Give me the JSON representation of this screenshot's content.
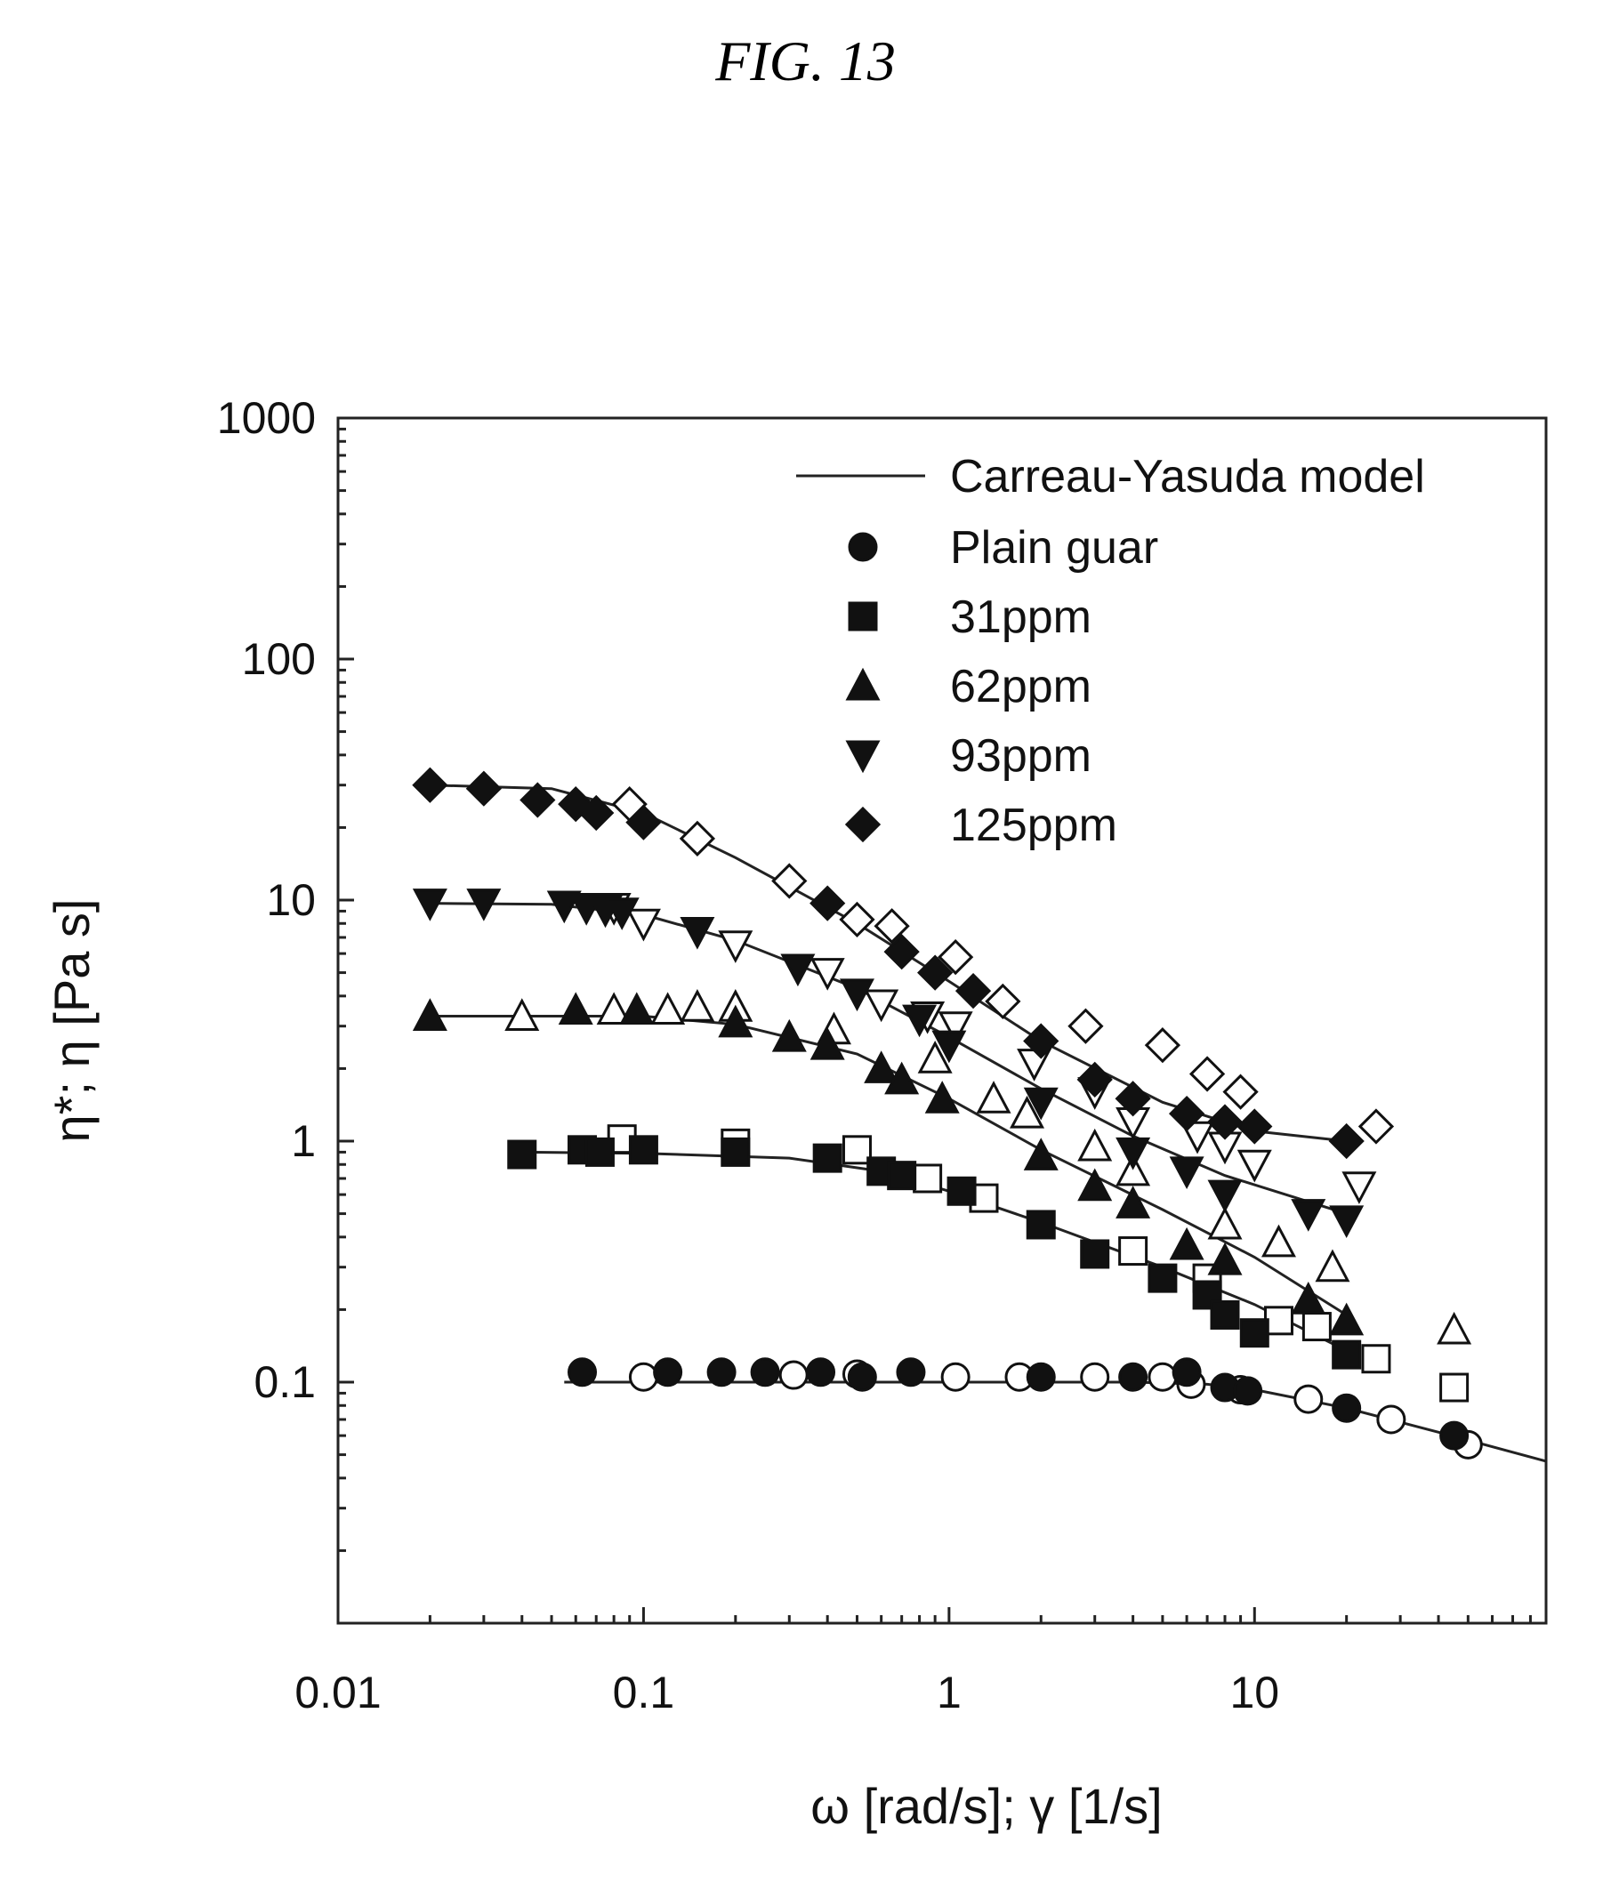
{
  "figure_label": "FIG. 13",
  "chart_data": {
    "type": "scatter",
    "title": "",
    "xlabel": "ω [rad/s]; γ [1/s]",
    "ylabel": "η*; η [Pa s]",
    "xscale": "log",
    "yscale": "log",
    "xlim": [
      0.01,
      90
    ],
    "ylim": [
      0.01,
      1000
    ],
    "x_ticks": [
      {
        "value": 0.01,
        "label": "0.01"
      },
      {
        "value": 0.1,
        "label": "0.1"
      },
      {
        "value": 1,
        "label": "1"
      },
      {
        "value": 10,
        "label": "10"
      }
    ],
    "y_ticks": [
      {
        "value": 1000,
        "label": "1000"
      },
      {
        "value": 100,
        "label": "100"
      },
      {
        "value": 10,
        "label": "10"
      },
      {
        "value": 1,
        "label": "1"
      },
      {
        "value": 0.1,
        "label": "0.1"
      }
    ],
    "grid": false,
    "legend_position": "top-right",
    "model_line_label": "Carreau-Yasuda model",
    "series": [
      {
        "name": "Plain guar",
        "marker": "circle",
        "filled": [
          [
            0.063,
            0.11
          ],
          [
            0.12,
            0.11
          ],
          [
            0.18,
            0.11
          ],
          [
            0.25,
            0.11
          ],
          [
            0.38,
            0.11
          ],
          [
            0.52,
            0.105
          ],
          [
            0.75,
            0.11
          ],
          [
            2,
            0.105
          ],
          [
            4,
            0.105
          ],
          [
            6,
            0.11
          ],
          [
            8,
            0.095
          ],
          [
            9.5,
            0.092
          ],
          [
            20,
            0.078
          ],
          [
            45,
            0.06
          ]
        ],
        "open": [
          [
            0.1,
            0.105
          ],
          [
            0.31,
            0.107
          ],
          [
            0.5,
            0.108
          ],
          [
            1.05,
            0.105
          ],
          [
            1.7,
            0.105
          ],
          [
            3,
            0.105
          ],
          [
            5,
            0.105
          ],
          [
            6.2,
            0.098
          ],
          [
            9,
            0.093
          ],
          [
            15,
            0.085
          ],
          [
            28,
            0.07
          ],
          [
            50,
            0.055
          ]
        ],
        "model": [
          [
            0.055,
            0.1
          ],
          [
            1,
            0.1
          ],
          [
            4,
            0.1
          ],
          [
            7,
            0.098
          ],
          [
            10,
            0.093
          ],
          [
            20,
            0.078
          ],
          [
            40,
            0.062
          ],
          [
            90,
            0.047
          ]
        ]
      },
      {
        "name": "31ppm",
        "marker": "square",
        "filled": [
          [
            0.04,
            0.88
          ],
          [
            0.063,
            0.92
          ],
          [
            0.072,
            0.9
          ],
          [
            0.1,
            0.92
          ],
          [
            0.2,
            0.9
          ],
          [
            0.4,
            0.85
          ],
          [
            0.6,
            0.75
          ],
          [
            0.7,
            0.72
          ],
          [
            1.1,
            0.62
          ],
          [
            2,
            0.45
          ],
          [
            3,
            0.34
          ],
          [
            5,
            0.27
          ],
          [
            7,
            0.23
          ],
          [
            8,
            0.19
          ],
          [
            10,
            0.16
          ],
          [
            20,
            0.13
          ]
        ],
        "open": [
          [
            0.085,
            1.02
          ],
          [
            0.2,
            0.98
          ],
          [
            0.5,
            0.92
          ],
          [
            0.85,
            0.7
          ],
          [
            1.3,
            0.58
          ],
          [
            4,
            0.35
          ],
          [
            7,
            0.27
          ],
          [
            12,
            0.18
          ],
          [
            16,
            0.17
          ],
          [
            25,
            0.125
          ],
          [
            45,
            0.095
          ]
        ],
        "model": [
          [
            0.04,
            0.9
          ],
          [
            0.1,
            0.89
          ],
          [
            0.3,
            0.85
          ],
          [
            0.6,
            0.75
          ],
          [
            1,
            0.62
          ],
          [
            2,
            0.46
          ],
          [
            5,
            0.3
          ],
          [
            10,
            0.21
          ],
          [
            20,
            0.135
          ]
        ]
      },
      {
        "name": "62ppm",
        "marker": "triangle-up",
        "filled": [
          [
            0.02,
            3.3
          ],
          [
            0.06,
            3.5
          ],
          [
            0.095,
            3.5
          ],
          [
            0.2,
            3.1
          ],
          [
            0.3,
            2.7
          ],
          [
            0.4,
            2.5
          ],
          [
            0.6,
            2.0
          ],
          [
            0.7,
            1.8
          ],
          [
            0.95,
            1.5
          ],
          [
            2,
            0.87
          ],
          [
            3,
            0.65
          ],
          [
            4,
            0.55
          ],
          [
            6,
            0.37
          ],
          [
            8,
            0.32
          ],
          [
            15,
            0.22
          ],
          [
            20,
            0.18
          ]
        ],
        "open": [
          [
            0.04,
            3.3
          ],
          [
            0.08,
            3.5
          ],
          [
            0.12,
            3.5
          ],
          [
            0.15,
            3.6
          ],
          [
            0.2,
            3.6
          ],
          [
            0.42,
            2.9
          ],
          [
            0.9,
            2.2
          ],
          [
            1.4,
            1.5
          ],
          [
            1.8,
            1.3
          ],
          [
            3,
            0.95
          ],
          [
            4,
            0.75
          ],
          [
            8,
            0.45
          ],
          [
            12,
            0.38
          ],
          [
            18,
            0.3
          ],
          [
            45,
            0.165
          ]
        ],
        "model": [
          [
            0.02,
            3.3
          ],
          [
            0.1,
            3.3
          ],
          [
            0.2,
            3.05
          ],
          [
            0.5,
            2.3
          ],
          [
            1,
            1.5
          ],
          [
            2,
            0.92
          ],
          [
            5,
            0.52
          ],
          [
            10,
            0.33
          ],
          [
            20,
            0.19
          ]
        ]
      },
      {
        "name": "93ppm",
        "marker": "triangle-down",
        "filled": [
          [
            0.02,
            9.7
          ],
          [
            0.03,
            9.7
          ],
          [
            0.055,
            9.5
          ],
          [
            0.065,
            9.3
          ],
          [
            0.075,
            9.1
          ],
          [
            0.085,
            8.9
          ],
          [
            0.15,
            7.4
          ],
          [
            0.32,
            5.2
          ],
          [
            0.5,
            4.1
          ],
          [
            0.8,
            3.2
          ],
          [
            1,
            2.5
          ],
          [
            2,
            1.45
          ],
          [
            4,
            0.9
          ],
          [
            6,
            0.75
          ],
          [
            8,
            0.6
          ],
          [
            15,
            0.5
          ],
          [
            20,
            0.47
          ]
        ],
        "open": [
          [
            0.08,
            9.3
          ],
          [
            0.1,
            8.0
          ],
          [
            0.2,
            6.5
          ],
          [
            0.4,
            5.0
          ],
          [
            0.6,
            3.7
          ],
          [
            0.85,
            3.3
          ],
          [
            1.05,
            3.0
          ],
          [
            1.9,
            2.1
          ],
          [
            3,
            1.6
          ],
          [
            4,
            1.2
          ],
          [
            6.5,
            1.05
          ],
          [
            8,
            0.95
          ],
          [
            10,
            0.8
          ],
          [
            22,
            0.65
          ]
        ],
        "model": [
          [
            0.02,
            9.7
          ],
          [
            0.05,
            9.6
          ],
          [
            0.1,
            8.7
          ],
          [
            0.2,
            6.8
          ],
          [
            0.5,
            4.3
          ],
          [
            1,
            2.7
          ],
          [
            2,
            1.65
          ],
          [
            4,
            1.05
          ],
          [
            8,
            0.72
          ],
          [
            20,
            0.5
          ]
        ]
      },
      {
        "name": "125ppm",
        "marker": "diamond",
        "filled": [
          [
            0.02,
            30
          ],
          [
            0.03,
            29
          ],
          [
            0.045,
            26
          ],
          [
            0.06,
            25
          ],
          [
            0.07,
            23
          ],
          [
            0.1,
            21
          ],
          [
            0.4,
            9.7
          ],
          [
            0.7,
            6.1
          ],
          [
            0.9,
            5.0
          ],
          [
            1.2,
            4.2
          ],
          [
            2,
            2.6
          ],
          [
            3,
            1.8
          ],
          [
            4,
            1.5
          ],
          [
            6,
            1.3
          ],
          [
            8,
            1.2
          ],
          [
            10,
            1.15
          ],
          [
            20,
            1.0
          ]
        ],
        "open": [
          [
            0.09,
            25
          ],
          [
            0.15,
            18
          ],
          [
            0.3,
            12
          ],
          [
            0.5,
            8.3
          ],
          [
            0.65,
            7.8
          ],
          [
            1.05,
            5.8
          ],
          [
            1.5,
            3.8
          ],
          [
            2.8,
            3.0
          ],
          [
            5,
            2.5
          ],
          [
            7,
            1.9
          ],
          [
            9,
            1.6
          ],
          [
            25,
            1.15
          ]
        ],
        "model": [
          [
            0.02,
            30
          ],
          [
            0.05,
            29
          ],
          [
            0.1,
            23
          ],
          [
            0.2,
            15
          ],
          [
            0.5,
            8.0
          ],
          [
            1,
            4.6
          ],
          [
            2,
            2.6
          ],
          [
            5,
            1.45
          ],
          [
            10,
            1.1
          ],
          [
            20,
            1.0
          ]
        ]
      }
    ]
  }
}
